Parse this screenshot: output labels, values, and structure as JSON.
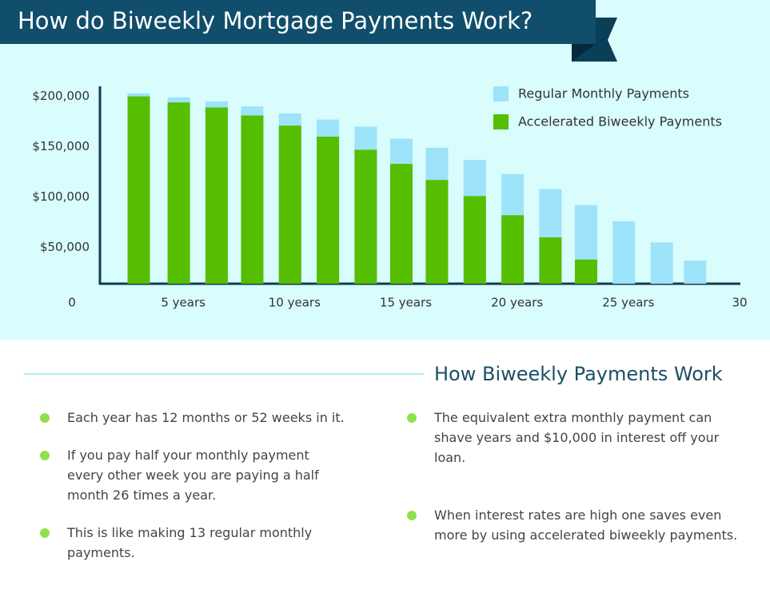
{
  "chart_data": {
    "type": "bar",
    "title": "How do Biweekly Mortgage Payments Work?",
    "x": [
      3,
      4.8,
      6.5,
      8.1,
      9.8,
      11.5,
      13.2,
      14.8,
      16.4,
      18.1,
      19.8,
      21.5,
      23.1,
      24.8,
      26.5,
      28
    ],
    "series": [
      {
        "name": "Regular Monthly Payments",
        "color": "#9de3fa",
        "values": [
          203000,
          199000,
          195000,
          190000,
          183000,
          177000,
          170000,
          158000,
          149000,
          137000,
          123000,
          108000,
          92000,
          76000,
          55000,
          37000
        ]
      },
      {
        "name": "Accelerated Biweekly  Payments",
        "color": "#55be00",
        "values": [
          200000,
          194000,
          189000,
          181000,
          171000,
          160000,
          147000,
          133000,
          117000,
          101000,
          82000,
          60000,
          38000,
          null,
          null,
          null
        ]
      }
    ],
    "xlim": [
      0,
      30
    ],
    "xticks": [
      0,
      {
        "value": 5,
        "label": "5 years"
      },
      {
        "value": 10,
        "label": "10 years"
      },
      {
        "value": 15,
        "label": "15 years"
      },
      {
        "value": 20,
        "label": "20 years"
      },
      {
        "value": 25,
        "label": "25 years"
      },
      30
    ],
    "ylim": [
      14000,
      210000
    ],
    "yticks": [
      {
        "value": 50000,
        "label": "$50,000"
      },
      {
        "value": 100000,
        "label": "$100,000"
      },
      {
        "value": 150000,
        "label": "$150,000"
      },
      {
        "value": 200000,
        "label": "$200,000"
      }
    ],
    "grid": false,
    "legend": "top-right"
  },
  "section": {
    "title": "How Biweekly Payments Work",
    "bullets_left": [
      "Each year has 12 months or 52 weeks in it.",
      "If you pay half your monthly payment every other week you are paying a half month 26 times a year.",
      "This is like making 13 regular monthly payments."
    ],
    "bullets_right": [
      "The equivalent extra monthly payment can shave years and $10,000 in interest off your loan.",
      "When interest rates are high one saves even more by using accelerated biweekly payments."
    ]
  }
}
